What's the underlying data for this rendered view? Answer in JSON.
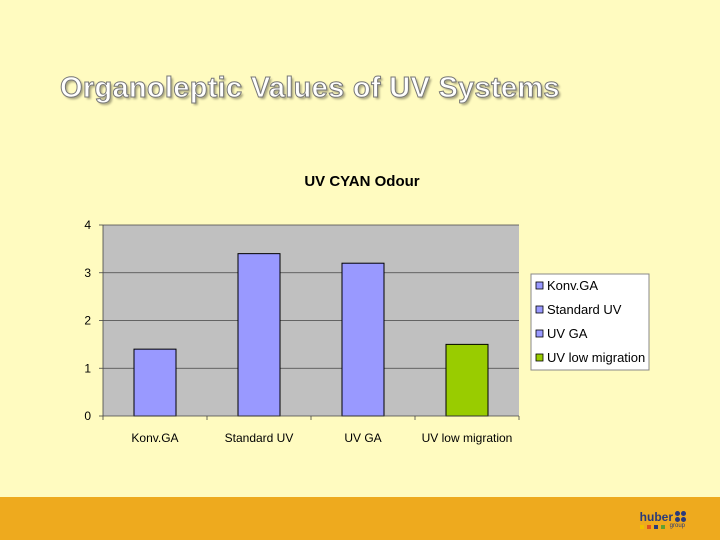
{
  "slide": {
    "title": "Organoleptic Values of UV Systems"
  },
  "logo": {
    "name": "huber",
    "sub": "group"
  },
  "colors": {
    "background": "#fffbc0",
    "footer": "#eeaa1e",
    "plot_bg": "#c0c0c0",
    "bar_default": "#9999ff",
    "bar_highlight": "#99cc00"
  },
  "chart_data": {
    "type": "bar",
    "title": "UV CYAN Odour",
    "categories": [
      "Konv.GA",
      "Standard UV",
      "UV GA",
      "UV low migration"
    ],
    "values": [
      1.4,
      3.4,
      3.2,
      1.5
    ],
    "bar_colors": [
      "#9999ff",
      "#9999ff",
      "#9999ff",
      "#99cc00"
    ],
    "ylim": [
      0,
      4
    ],
    "yticks": [
      0,
      1,
      2,
      3,
      4
    ],
    "xlabel": "",
    "ylabel": "",
    "grid": true,
    "legend": {
      "position": "right",
      "entries": [
        "Konv.GA",
        "Standard UV",
        "UV GA",
        "UV low migration"
      ]
    }
  }
}
